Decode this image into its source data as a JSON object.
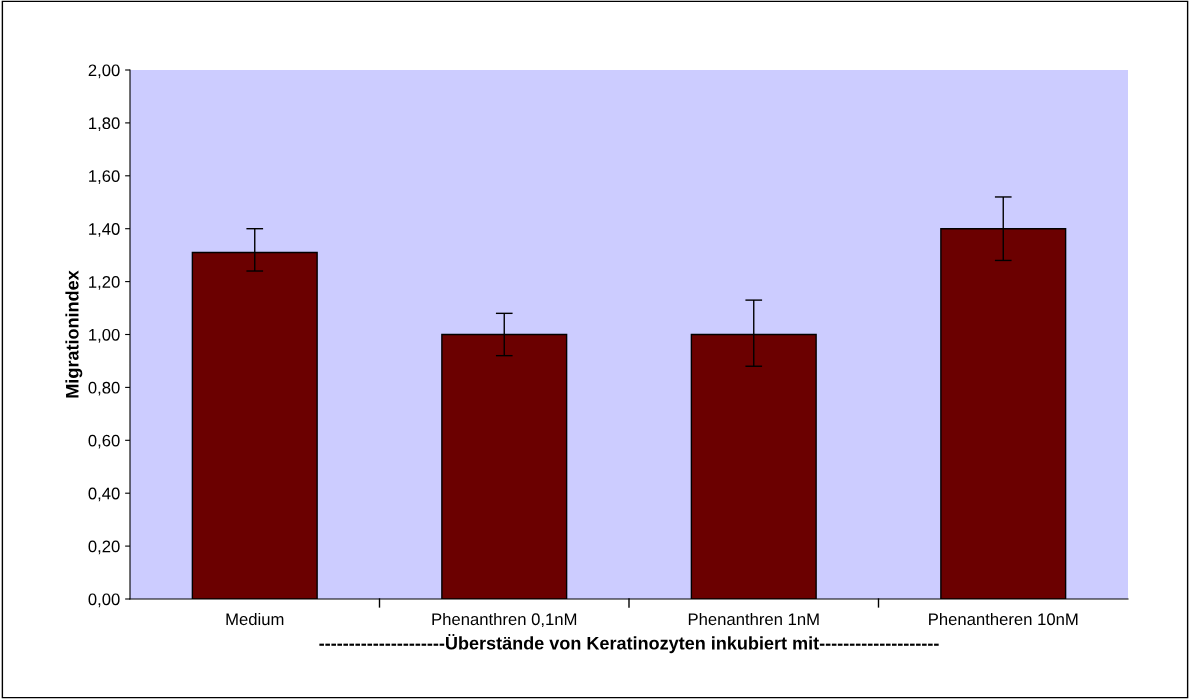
{
  "chart_data": {
    "type": "bar",
    "xlabel": "---------------------Überstände von Keratinozyten inkubiert mit--------------------",
    "ylabel": "Migrationindex",
    "categories": [
      "Medium",
      "Phenanthren 0,1nM",
      "Phenanthren 1nM",
      "Phenantheren 10nM"
    ],
    "values": [
      1.31,
      1.0,
      1.0,
      1.4
    ],
    "errors": [
      [
        1.24,
        1.4
      ],
      [
        0.92,
        1.08
      ],
      [
        0.88,
        1.13
      ],
      [
        1.28,
        1.52
      ]
    ],
    "color": "#6b0000",
    "ylim": [
      0,
      2.0
    ],
    "yticks": [
      {
        "value": 0,
        "label": "0,00"
      },
      {
        "value": 0.2,
        "label": "0,20"
      },
      {
        "value": 0.4,
        "label": "0,40"
      },
      {
        "value": 0.6,
        "label": "0,60"
      },
      {
        "value": 0.8,
        "label": "0,80"
      },
      {
        "value": 1.0,
        "label": "1,00"
      },
      {
        "value": 1.2,
        "label": "1,20"
      },
      {
        "value": 1.4,
        "label": "1,40"
      },
      {
        "value": 1.6,
        "label": "1,60"
      },
      {
        "value": 1.8,
        "label": "1,80"
      },
      {
        "value": 2.0,
        "label": "2,00"
      }
    ],
    "grid": false
  }
}
